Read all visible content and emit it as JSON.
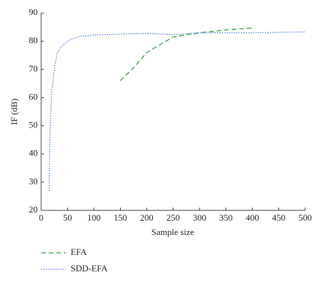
{
  "chart_data": {
    "type": "line",
    "x_label": "Sample size",
    "y_label": "IF (dB)",
    "xlim": [
      0,
      500
    ],
    "ylim": [
      20,
      90
    ],
    "xticks": [
      0,
      50,
      100,
      150,
      200,
      250,
      300,
      350,
      400,
      450,
      500
    ],
    "yticks": [
      20,
      30,
      40,
      50,
      60,
      70,
      80,
      90
    ],
    "legend_position": "bottom-left",
    "series": [
      {
        "name": "EFA",
        "color": "#2e9a3e",
        "style": "dashed",
        "x": [
          150,
          175,
          200,
          250,
          300,
          350,
          400
        ],
        "values": [
          66,
          70.5,
          76,
          81.5,
          83,
          84,
          84.7
        ]
      },
      {
        "name": "SDD-EFA",
        "color": "#3a6fd8",
        "style": "dotted",
        "x": [
          15,
          17,
          20,
          25,
          30,
          40,
          50,
          60,
          75,
          100,
          150,
          200,
          250,
          300,
          350,
          400,
          500
        ],
        "values": [
          27,
          50,
          62,
          70,
          75.5,
          78.5,
          80,
          81,
          81.8,
          82.2,
          82.5,
          82.8,
          82.3,
          83,
          83,
          83,
          83.3
        ]
      }
    ]
  }
}
